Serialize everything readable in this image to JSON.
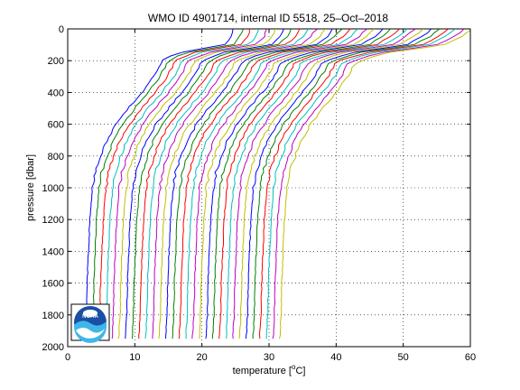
{
  "chart_data": {
    "type": "line",
    "title": "WMO ID 4901714, internal ID 5518, 25–Oct–2018",
    "xlabel_prefix": "temperature [",
    "xlabel_unit_sup": "o",
    "xlabel_suffix": "C]",
    "ylabel": "pressure [dbar]",
    "xlim": [
      0,
      60
    ],
    "ylim": [
      0,
      2000
    ],
    "y_reversed": true,
    "grid": true,
    "grid_style": "dotted",
    "xticks": [
      0,
      10,
      20,
      30,
      40,
      50,
      60
    ],
    "yticks": [
      0,
      200,
      400,
      600,
      800,
      1000,
      1200,
      1400,
      1600,
      1800,
      2000
    ],
    "offset_note": "each successive profile is shifted right by 1 degC",
    "series_colors": [
      "#0000ff",
      "#008000",
      "#ff0000",
      "#00bfbf",
      "#bf00bf",
      "#bfbf00"
    ],
    "profile_count": 30,
    "profile_offset": 1.0,
    "base_profile": {
      "pressure": [
        0,
        50,
        100,
        150,
        200,
        300,
        400,
        500,
        600,
        700,
        800,
        900,
        1000,
        1200,
        1400,
        1600,
        1800,
        1950
      ],
      "temperature": [
        24.8,
        24.5,
        23.5,
        16.5,
        14.0,
        12.8,
        11.0,
        9.0,
        7.2,
        5.8,
        4.9,
        4.1,
        3.7,
        3.3,
        3.1,
        2.9,
        2.8,
        2.6
      ]
    }
  },
  "logo": {
    "text": "NOAA"
  }
}
